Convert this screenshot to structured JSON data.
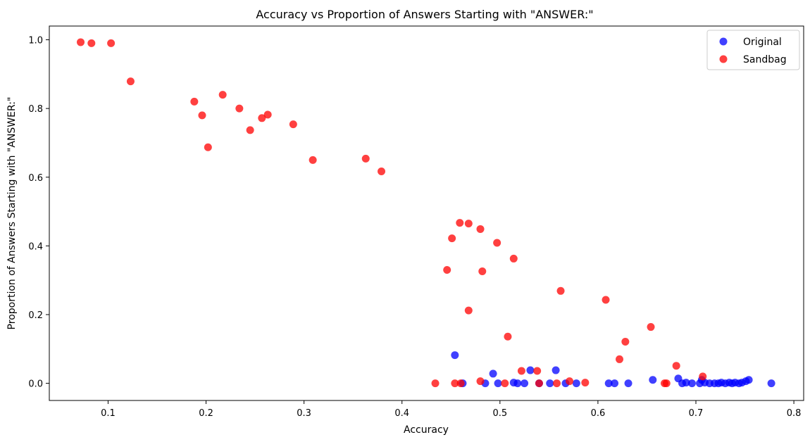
{
  "chart_data": {
    "type": "scatter",
    "title": "Accuracy vs Proportion of Answers Starting with \"ANSWER:\"",
    "xlabel": "Accuracy",
    "ylabel": "Proportion of Answers Starting with \"ANSWER:\"",
    "xlim": [
      0.04,
      0.81
    ],
    "ylim": [
      -0.05,
      1.04
    ],
    "xticks": [
      {
        "value": 0.1,
        "label": "0.1"
      },
      {
        "value": 0.2,
        "label": "0.2"
      },
      {
        "value": 0.3,
        "label": "0.3"
      },
      {
        "value": 0.4,
        "label": "0.4"
      },
      {
        "value": 0.5,
        "label": "0.5"
      },
      {
        "value": 0.6,
        "label": "0.6"
      },
      {
        "value": 0.7,
        "label": "0.7"
      },
      {
        "value": 0.8,
        "label": "0.8"
      }
    ],
    "yticks": [
      {
        "value": 0.0,
        "label": "0.0"
      },
      {
        "value": 0.2,
        "label": "0.2"
      },
      {
        "value": 0.4,
        "label": "0.4"
      },
      {
        "value": 0.6,
        "label": "0.6"
      },
      {
        "value": 0.8,
        "label": "0.8"
      },
      {
        "value": 1.0,
        "label": "1.0"
      }
    ],
    "grid": false,
    "legend_position": "top-right",
    "series": [
      {
        "name": "Original",
        "color": "#0000ff",
        "points": [
          [
            0.454,
            0.082
          ],
          [
            0.462,
            0.0
          ],
          [
            0.485,
            0.0
          ],
          [
            0.493,
            0.028
          ],
          [
            0.498,
            0.0
          ],
          [
            0.514,
            0.002
          ],
          [
            0.518,
            0.0
          ],
          [
            0.525,
            0.0
          ],
          [
            0.531,
            0.038
          ],
          [
            0.54,
            0.0
          ],
          [
            0.551,
            0.0
          ],
          [
            0.557,
            0.038
          ],
          [
            0.567,
            0.0
          ],
          [
            0.578,
            0.0
          ],
          [
            0.611,
            0.0
          ],
          [
            0.617,
            0.0
          ],
          [
            0.631,
            0.0
          ],
          [
            0.656,
            0.01
          ],
          [
            0.682,
            0.014
          ],
          [
            0.686,
            0.0
          ],
          [
            0.69,
            0.002
          ],
          [
            0.696,
            0.0
          ],
          [
            0.704,
            0.0
          ],
          [
            0.706,
            0.01
          ],
          [
            0.709,
            0.002
          ],
          [
            0.714,
            0.0
          ],
          [
            0.719,
            0.0
          ],
          [
            0.723,
            0.0
          ],
          [
            0.726,
            0.002
          ],
          [
            0.73,
            0.0
          ],
          [
            0.734,
            0.002
          ],
          [
            0.737,
            0.0
          ],
          [
            0.74,
            0.002
          ],
          [
            0.744,
            0.0
          ],
          [
            0.747,
            0.002
          ],
          [
            0.751,
            0.006
          ],
          [
            0.754,
            0.01
          ],
          [
            0.777,
            0.0
          ]
        ]
      },
      {
        "name": "Sandbag",
        "color": "#ff0000",
        "points": [
          [
            0.072,
            0.993
          ],
          [
            0.083,
            0.99
          ],
          [
            0.103,
            0.99
          ],
          [
            0.123,
            0.879
          ],
          [
            0.188,
            0.82
          ],
          [
            0.196,
            0.78
          ],
          [
            0.202,
            0.687
          ],
          [
            0.217,
            0.84
          ],
          [
            0.234,
            0.8
          ],
          [
            0.245,
            0.737
          ],
          [
            0.257,
            0.772
          ],
          [
            0.263,
            0.782
          ],
          [
            0.289,
            0.754
          ],
          [
            0.309,
            0.65
          ],
          [
            0.363,
            0.654
          ],
          [
            0.379,
            0.617
          ],
          [
            0.434,
            0.0
          ],
          [
            0.446,
            0.33
          ],
          [
            0.451,
            0.422
          ],
          [
            0.454,
            0.0
          ],
          [
            0.459,
            0.467
          ],
          [
            0.46,
            0.0
          ],
          [
            0.468,
            0.465
          ],
          [
            0.468,
            0.212
          ],
          [
            0.48,
            0.449
          ],
          [
            0.48,
            0.006
          ],
          [
            0.482,
            0.326
          ],
          [
            0.497,
            0.409
          ],
          [
            0.505,
            0.0
          ],
          [
            0.508,
            0.136
          ],
          [
            0.514,
            0.363
          ],
          [
            0.522,
            0.036
          ],
          [
            0.538,
            0.036
          ],
          [
            0.54,
            0.0
          ],
          [
            0.558,
            0.0
          ],
          [
            0.562,
            0.269
          ],
          [
            0.571,
            0.006
          ],
          [
            0.587,
            0.002
          ],
          [
            0.608,
            0.243
          ],
          [
            0.622,
            0.07
          ],
          [
            0.628,
            0.121
          ],
          [
            0.654,
            0.164
          ],
          [
            0.668,
            0.0
          ],
          [
            0.67,
            0.0
          ],
          [
            0.68,
            0.051
          ],
          [
            0.707,
            0.02
          ]
        ]
      }
    ]
  }
}
